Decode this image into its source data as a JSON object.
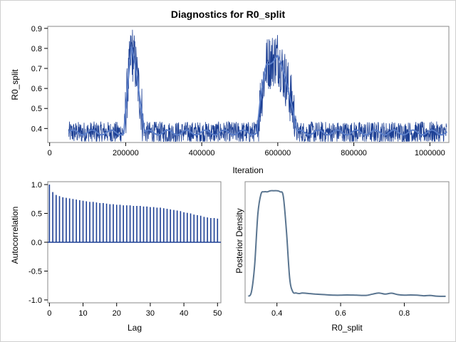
{
  "chart_data": [
    {
      "type": "line",
      "title": "Diagnostics for R0_split",
      "xlabel": "Iteration",
      "ylabel": "R0_split",
      "xlim": [
        -5000,
        1050000
      ],
      "ylim": [
        0.33,
        0.91
      ],
      "xticks": [
        "0",
        "200000",
        "400000",
        "600000",
        "800000",
        "1000000"
      ],
      "xtick_values": [
        0,
        200000,
        400000,
        600000,
        800000,
        1000000
      ],
      "yticks": [
        "0.4",
        "0.5",
        "0.6",
        "0.7",
        "0.8",
        "0.9"
      ],
      "ytick_values": [
        0.4,
        0.5,
        0.6,
        0.7,
        0.8,
        0.9
      ],
      "iteration_start": 50000,
      "iteration_end": 1045000,
      "trace_profile": {
        "x": [
          50000,
          195000,
          205000,
          215000,
          225000,
          238000,
          250000,
          545000,
          555000,
          570000,
          600000,
          625000,
          640000,
          650000,
          1045000
        ],
        "y": [
          0.38,
          0.38,
          0.6,
          0.8,
          0.72,
          0.55,
          0.38,
          0.38,
          0.55,
          0.72,
          0.76,
          0.62,
          0.5,
          0.38,
          0.38
        ]
      },
      "trace_color": "#1c3f94",
      "smooth_color": "#5b7ec8"
    },
    {
      "type": "bar",
      "xlabel": "Lag",
      "ylabel": "Autocorrelation",
      "xlim": [
        -0.5,
        51
      ],
      "ylim": [
        -1.05,
        1.05
      ],
      "xticks": [
        "0",
        "10",
        "20",
        "30",
        "40",
        "50"
      ],
      "xtick_values": [
        0,
        10,
        20,
        30,
        40,
        50
      ],
      "yticks": [
        "-1.0",
        "-0.5",
        "0.0",
        "0.5",
        "1.0"
      ],
      "ytick_values": [
        -1.0,
        -0.5,
        0.0,
        0.5,
        1.0
      ],
      "lags": [
        0,
        1,
        2,
        3,
        4,
        5,
        6,
        7,
        8,
        9,
        10,
        11,
        12,
        13,
        14,
        15,
        16,
        17,
        18,
        19,
        20,
        21,
        22,
        23,
        24,
        25,
        26,
        27,
        28,
        29,
        30,
        31,
        32,
        33,
        34,
        35,
        36,
        37,
        38,
        39,
        40,
        41,
        42,
        43,
        44,
        45,
        46,
        47,
        48,
        49,
        50
      ],
      "values": [
        1.0,
        0.87,
        0.82,
        0.8,
        0.78,
        0.77,
        0.76,
        0.75,
        0.74,
        0.73,
        0.72,
        0.71,
        0.7,
        0.7,
        0.69,
        0.68,
        0.68,
        0.67,
        0.66,
        0.66,
        0.65,
        0.65,
        0.64,
        0.64,
        0.64,
        0.63,
        0.63,
        0.63,
        0.62,
        0.62,
        0.61,
        0.61,
        0.6,
        0.6,
        0.59,
        0.58,
        0.57,
        0.56,
        0.55,
        0.54,
        0.52,
        0.51,
        0.5,
        0.48,
        0.47,
        0.46,
        0.44,
        0.43,
        0.42,
        0.42,
        0.41
      ],
      "bar_color": "#1c3f94"
    },
    {
      "type": "area",
      "xlabel": "R0_split",
      "ylabel": "Posterior Density",
      "xlim": [
        0.3,
        0.94
      ],
      "ylim": [
        0,
        1.0
      ],
      "xticks": [
        "0.4",
        "0.6",
        "0.8"
      ],
      "xtick_values": [
        0.4,
        0.6,
        0.8
      ],
      "x": [
        0.31,
        0.32,
        0.33,
        0.34,
        0.35,
        0.36,
        0.37,
        0.38,
        0.39,
        0.4,
        0.41,
        0.42,
        0.43,
        0.44,
        0.45,
        0.46,
        0.47,
        0.48,
        0.5,
        0.52,
        0.55,
        0.58,
        0.6,
        0.62,
        0.65,
        0.68,
        0.7,
        0.72,
        0.74,
        0.76,
        0.78,
        0.8,
        0.82,
        0.84,
        0.86,
        0.88,
        0.9,
        0.92,
        0.93
      ],
      "y": [
        0.02,
        0.06,
        0.3,
        0.76,
        0.94,
        0.96,
        0.96,
        0.97,
        0.97,
        0.97,
        0.96,
        0.92,
        0.6,
        0.18,
        0.06,
        0.05,
        0.045,
        0.05,
        0.045,
        0.04,
        0.035,
        0.03,
        0.03,
        0.032,
        0.03,
        0.028,
        0.04,
        0.05,
        0.04,
        0.048,
        0.035,
        0.03,
        0.032,
        0.03,
        0.025,
        0.028,
        0.022,
        0.02,
        0.02
      ],
      "line_color": "#5a7590"
    }
  ]
}
